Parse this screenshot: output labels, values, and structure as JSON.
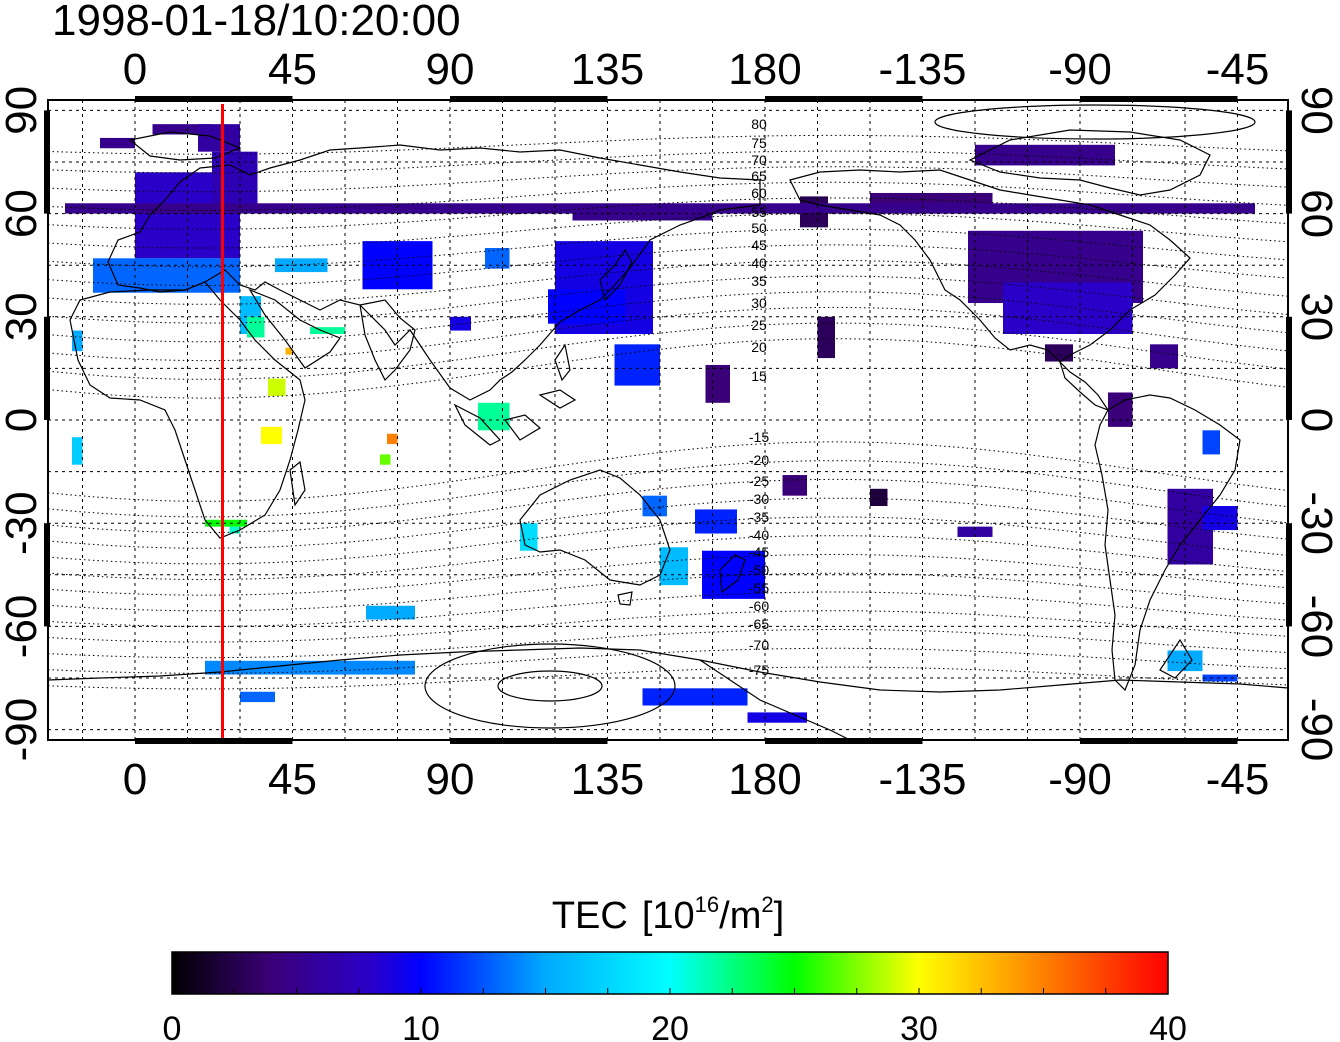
{
  "title": "1998-01-18/10:20:00",
  "lon_ticks": [
    "0",
    "45",
    "90",
    "135",
    "180",
    "-135",
    "-90",
    "-45"
  ],
  "lat_ticks": [
    "90",
    "60",
    "30",
    "0",
    "-30",
    "-60",
    "-90"
  ],
  "contour_labels_north": [
    "80",
    "75",
    "70",
    "65",
    "60",
    "55",
    "50",
    "45",
    "40",
    "35",
    "30",
    "25",
    "20",
    "15"
  ],
  "contour_labels_south": [
    "-15",
    "-20",
    "-25",
    "-30",
    "-35",
    "-40",
    "-45",
    "-50",
    "-55",
    "-60",
    "-65",
    "-70",
    "-75"
  ],
  "colorbar": {
    "label": "TEC",
    "unit_base": "[10",
    "unit_exp": "16",
    "unit_mid": "/m",
    "unit_exp2": "2",
    "unit_close": "]",
    "ticks": [
      "0",
      "10",
      "20",
      "30",
      "40"
    ],
    "range": [
      0,
      40
    ],
    "colors": [
      "#000000",
      "#3a0078",
      "#0000ff",
      "#00ffff",
      "#00ff00",
      "#ffff00",
      "#ff0000"
    ]
  },
  "chart_data": {
    "type": "heatmap",
    "title": "1998-01-18/10:20:00",
    "quantity": "TEC",
    "unit": "10^16/m^2",
    "color_range": [
      0,
      40
    ],
    "x_ticks": [
      0,
      45,
      90,
      135,
      180,
      -135,
      -90,
      -45
    ],
    "y_ticks": [
      90,
      60,
      30,
      0,
      -30,
      -60,
      -90
    ],
    "terminator_lon": 25,
    "cells": [
      {
        "lon": 0,
        "lat": 47,
        "lon2": 30,
        "lat2": 72,
        "tec": 8
      },
      {
        "lon": -12,
        "lat": 37,
        "lon2": 30,
        "lat2": 47,
        "tec": 13
      },
      {
        "lon": 22,
        "lat": 62,
        "lon2": 35,
        "lat2": 78,
        "tec": 7
      },
      {
        "lon": -10,
        "lat": 79,
        "lon2": 0,
        "lat2": 82,
        "tec": 5
      },
      {
        "lon": 5,
        "lat": 83,
        "lon2": 22,
        "lat2": 86,
        "tec": 5
      },
      {
        "lon": 18,
        "lat": 78,
        "lon2": 30,
        "lat2": 86,
        "tec": 6
      },
      {
        "lon": 40,
        "lat": 43,
        "lon2": 55,
        "lat2": 47,
        "tec": 15
      },
      {
        "lon": 65,
        "lat": 38,
        "lon2": 85,
        "lat2": 52,
        "tec": 10
      },
      {
        "lon": 30,
        "lat": 25,
        "lon2": 36,
        "lat2": 36,
        "tec": 16
      },
      {
        "lon": 32,
        "lat": 24,
        "lon2": 37,
        "lat2": 30,
        "tec": 22
      },
      {
        "lon": 50,
        "lat": 25,
        "lon2": 60,
        "lat2": 27,
        "tec": 22
      },
      {
        "lon": 43,
        "lat": 19,
        "lon2": 45,
        "lat2": 21,
        "tec": 33
      },
      {
        "lon": 38,
        "lat": 7,
        "lon2": 43,
        "lat2": 12,
        "tec": 29
      },
      {
        "lon": 36,
        "lat": -7,
        "lon2": 42,
        "lat2": -2,
        "tec": 30
      },
      {
        "lon": 72,
        "lat": -7,
        "lon2": 75,
        "lat2": -4,
        "tec": 35
      },
      {
        "lon": 70,
        "lat": -13,
        "lon2": 73,
        "lat2": -10,
        "tec": 27
      },
      {
        "lon": -18,
        "lat": -13,
        "lon2": -15,
        "lat2": -5,
        "tec": 17
      },
      {
        "lon": -18,
        "lat": 20,
        "lon2": -15,
        "lat2": 26,
        "tec": 15
      },
      {
        "lon": 20,
        "lat": -31,
        "lon2": 32,
        "lat2": -29,
        "tec": 25
      },
      {
        "lon": 27,
        "lat": -33,
        "lon2": 30,
        "lat2": -31,
        "tec": 21
      },
      {
        "lon": 98,
        "lat": -3,
        "lon2": 107,
        "lat2": 5,
        "tec": 22
      },
      {
        "lon": 100,
        "lat": 44,
        "lon2": 107,
        "lat2": 50,
        "tec": 13
      },
      {
        "lon": 90,
        "lat": 26,
        "lon2": 96,
        "lat2": 30,
        "tec": 9
      },
      {
        "lon": 120,
        "lat": 25,
        "lon2": 148,
        "lat2": 52,
        "tec": 9
      },
      {
        "lon": 118,
        "lat": 28,
        "lon2": 140,
        "lat2": 38,
        "tec": 10
      },
      {
        "lon": 125,
        "lat": 58,
        "lon2": 165,
        "lat2": 62,
        "tec": 5
      },
      {
        "lon": 137,
        "lat": 10,
        "lon2": 150,
        "lat2": 22,
        "tec": 11
      },
      {
        "lon": 163,
        "lat": 5,
        "lon2": 170,
        "lat2": 16,
        "tec": 4
      },
      {
        "lon": 110,
        "lat": -38,
        "lon2": 115,
        "lat2": -30,
        "tec": 18
      },
      {
        "lon": 145,
        "lat": -28,
        "lon2": 152,
        "lat2": -22,
        "tec": 13
      },
      {
        "lon": 150,
        "lat": -48,
        "lon2": 158,
        "lat2": -37,
        "tec": 16
      },
      {
        "lon": 160,
        "lat": -33,
        "lon2": 172,
        "lat2": -26,
        "tec": 11
      },
      {
        "lon": 162,
        "lat": -52,
        "lon2": 180,
        "lat2": -38,
        "tec": 10
      },
      {
        "lon": 66,
        "lat": -58,
        "lon2": 80,
        "lat2": -54,
        "tec": 15
      },
      {
        "lon": 20,
        "lat": -74,
        "lon2": 80,
        "lat2": -70,
        "tec": 14
      },
      {
        "lon": 30,
        "lat": -82,
        "lon2": 40,
        "lat2": -79,
        "tec": 13
      },
      {
        "lon": 145,
        "lat": -83,
        "lon2": 175,
        "lat2": -78,
        "tec": 11
      },
      {
        "lon": 175,
        "lat": -88,
        "lon2": -168,
        "lat2": -85,
        "tec": 9
      },
      {
        "lon": -170,
        "lat": 56,
        "lon2": -162,
        "lat2": 65,
        "tec": 3
      },
      {
        "lon": -165,
        "lat": 18,
        "lon2": -160,
        "lat2": 30,
        "tec": 3
      },
      {
        "lon": -150,
        "lat": -25,
        "lon2": -145,
        "lat2": -20,
        "tec": 2
      },
      {
        "lon": -175,
        "lat": -22,
        "lon2": -168,
        "lat2": -16,
        "tec": 4
      },
      {
        "lon": -122,
        "lat": 34,
        "lon2": -72,
        "lat2": 55,
        "tec": 5
      },
      {
        "lon": -112,
        "lat": 25,
        "lon2": -75,
        "lat2": 40,
        "tec": 8
      },
      {
        "lon": -150,
        "lat": 60,
        "lon2": -115,
        "lat2": 66,
        "tec": 4
      },
      {
        "lon": -120,
        "lat": 74,
        "lon2": -80,
        "lat2": 80,
        "tec": 5
      },
      {
        "lon": -100,
        "lat": 17,
        "lon2": -92,
        "lat2": 22,
        "tec": 3
      },
      {
        "lon": -70,
        "lat": 15,
        "lon2": -62,
        "lat2": 22,
        "tec": 5
      },
      {
        "lon": -82,
        "lat": -2,
        "lon2": -75,
        "lat2": 8,
        "tec": 4
      },
      {
        "lon": -55,
        "lat": -10,
        "lon2": -50,
        "lat2": -3,
        "tec": 12
      },
      {
        "lon": -65,
        "lat": -42,
        "lon2": -52,
        "lat2": -20,
        "tec": 6
      },
      {
        "lon": -55,
        "lat": -32,
        "lon2": -45,
        "lat2": -25,
        "tec": 9
      },
      {
        "lon": -125,
        "lat": -34,
        "lon2": -115,
        "lat2": -31,
        "tec": 6
      },
      {
        "lon": -65,
        "lat": -73,
        "lon2": -55,
        "lat2": -67,
        "tec": 15
      },
      {
        "lon": -55,
        "lat": -76,
        "lon2": -45,
        "lat2": -74,
        "tec": 12
      },
      {
        "lon": -40,
        "lat": 60,
        "lon2": -20,
        "lat2": 63,
        "tec": 5
      }
    ]
  }
}
